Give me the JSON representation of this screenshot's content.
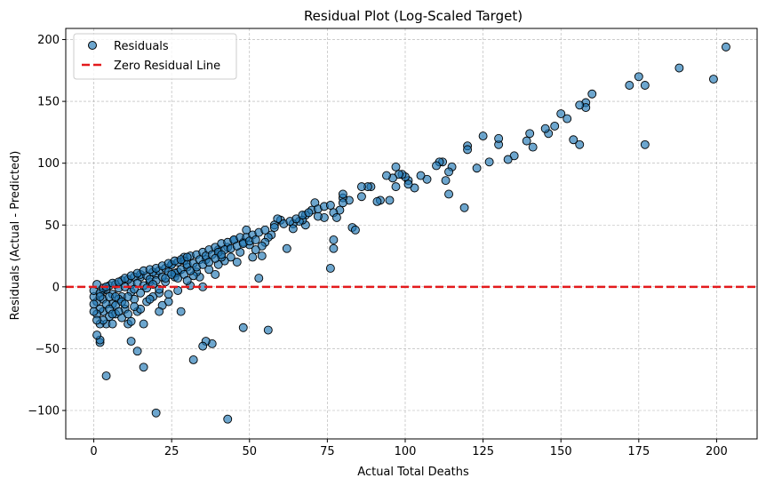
{
  "chart_data": {
    "type": "scatter",
    "title": "Residual Plot (Log-Scaled Target)",
    "xlabel": "Actual Total Deaths",
    "ylabel": "Residuals (Actual - Predicted)",
    "xlim": [
      -9,
      213
    ],
    "ylim": [
      -123,
      209
    ],
    "xticks": [
      0,
      25,
      50,
      75,
      100,
      125,
      150,
      175,
      200
    ],
    "yticks": [
      -100,
      -50,
      0,
      50,
      100,
      150,
      200
    ],
    "yticklabels": [
      "−100",
      "−50",
      "0",
      "50",
      "100",
      "150",
      "200"
    ],
    "grid": true,
    "legend_position": "top-left",
    "legend": [
      "Residuals",
      "Zero Residual Line"
    ],
    "colors": {
      "points": "#1f77b4",
      "point_edge": "#000000",
      "zero_line": "#e31a1c"
    },
    "series": [
      {
        "name": "Residuals",
        "points": [
          [
            203,
            194
          ],
          [
            188,
            177
          ],
          [
            175,
            170
          ],
          [
            172,
            163
          ],
          [
            177,
            163
          ],
          [
            199,
            168
          ],
          [
            160,
            156
          ],
          [
            158,
            149
          ],
          [
            158,
            145
          ],
          [
            156,
            147
          ],
          [
            150,
            140
          ],
          [
            152,
            136
          ],
          [
            148,
            130
          ],
          [
            146,
            124
          ],
          [
            145,
            128
          ],
          [
            154,
            119
          ],
          [
            156,
            115
          ],
          [
            177,
            115
          ],
          [
            140,
            124
          ],
          [
            141,
            113
          ],
          [
            139,
            118
          ],
          [
            135,
            106
          ],
          [
            133,
            103
          ],
          [
            130,
            115
          ],
          [
            130,
            120
          ],
          [
            125,
            122
          ],
          [
            127,
            101
          ],
          [
            123,
            96
          ],
          [
            120,
            114
          ],
          [
            120,
            111
          ],
          [
            119,
            64
          ],
          [
            115,
            97
          ],
          [
            114,
            93
          ],
          [
            114,
            75
          ],
          [
            113,
            86
          ],
          [
            112,
            101
          ],
          [
            111,
            101
          ],
          [
            110,
            98
          ],
          [
            107,
            87
          ],
          [
            105,
            90
          ],
          [
            103,
            80
          ],
          [
            101,
            86
          ],
          [
            101,
            83
          ],
          [
            100,
            89
          ],
          [
            99,
            91
          ],
          [
            98,
            91
          ],
          [
            96,
            88
          ],
          [
            97,
            81
          ],
          [
            97,
            97
          ],
          [
            95,
            70
          ],
          [
            94,
            90
          ],
          [
            92,
            70
          ],
          [
            91,
            69
          ],
          [
            89,
            81
          ],
          [
            88,
            81
          ],
          [
            86,
            81
          ],
          [
            86,
            73
          ],
          [
            82,
            70
          ],
          [
            83,
            48
          ],
          [
            84,
            46
          ],
          [
            80,
            72
          ],
          [
            80,
            75
          ],
          [
            80,
            68
          ],
          [
            79,
            62
          ],
          [
            77,
            60
          ],
          [
            77,
            38
          ],
          [
            77,
            31
          ],
          [
            76,
            15
          ],
          [
            78,
            56
          ],
          [
            74,
            56
          ],
          [
            72,
            57
          ],
          [
            71,
            68
          ],
          [
            70,
            62
          ],
          [
            68,
            58
          ],
          [
            68,
            50
          ],
          [
            67,
            54
          ],
          [
            66,
            53
          ],
          [
            64,
            51
          ],
          [
            64,
            47
          ],
          [
            62,
            31
          ],
          [
            60,
            54
          ],
          [
            59,
            55
          ],
          [
            58,
            50
          ],
          [
            57,
            42
          ],
          [
            56,
            40
          ],
          [
            56,
            -35
          ],
          [
            55,
            36
          ],
          [
            54,
            33
          ],
          [
            54,
            25
          ],
          [
            53,
            7
          ],
          [
            52,
            30
          ],
          [
            51,
            24
          ],
          [
            50,
            34
          ],
          [
            49,
            46
          ],
          [
            48,
            36
          ],
          [
            48,
            -33
          ],
          [
            47,
            28
          ],
          [
            46,
            20
          ],
          [
            45,
            38
          ],
          [
            44,
            24
          ],
          [
            43,
            -107
          ],
          [
            43,
            32
          ],
          [
            42,
            21
          ],
          [
            41,
            24
          ],
          [
            40,
            30
          ],
          [
            40,
            18
          ],
          [
            39,
            10
          ],
          [
            38,
            -46
          ],
          [
            37,
            14
          ],
          [
            36,
            22
          ],
          [
            36,
            -44
          ],
          [
            35,
            -48
          ],
          [
            35,
            0
          ],
          [
            34,
            8
          ],
          [
            33,
            12
          ],
          [
            32,
            -59
          ],
          [
            32,
            9
          ],
          [
            31,
            1
          ],
          [
            30,
            16
          ],
          [
            29,
            24
          ],
          [
            28,
            -20
          ],
          [
            27,
            12
          ],
          [
            26,
            8
          ],
          [
            25,
            18
          ],
          [
            24,
            -12
          ],
          [
            23,
            4
          ],
          [
            22,
            -15
          ],
          [
            21,
            -5
          ],
          [
            20,
            -102
          ],
          [
            20,
            10
          ],
          [
            19,
            -8
          ],
          [
            18,
            4
          ],
          [
            17,
            -12
          ],
          [
            16,
            -65
          ],
          [
            16,
            -30
          ],
          [
            15,
            8
          ],
          [
            14,
            -52
          ],
          [
            14,
            -20
          ],
          [
            13,
            -10
          ],
          [
            12,
            -44
          ],
          [
            12,
            2
          ],
          [
            11,
            -30
          ],
          [
            10,
            -18
          ],
          [
            9,
            -8
          ],
          [
            8,
            -10
          ],
          [
            7,
            -22
          ],
          [
            6,
            -14
          ],
          [
            5,
            -24
          ],
          [
            4,
            -72
          ],
          [
            4,
            -30
          ],
          [
            3,
            -20
          ],
          [
            2,
            -45
          ],
          [
            2,
            -43
          ],
          [
            2,
            -30
          ],
          [
            1,
            -39
          ],
          [
            1,
            -12
          ],
          [
            0,
            -8
          ],
          [
            0,
            -3
          ],
          [
            1,
            2
          ],
          [
            3,
            -3
          ],
          [
            5,
            1
          ],
          [
            7,
            2
          ],
          [
            9,
            5
          ],
          [
            11,
            6
          ],
          [
            13,
            8
          ],
          [
            15,
            10
          ],
          [
            17,
            9
          ],
          [
            19,
            12
          ],
          [
            21,
            13
          ],
          [
            23,
            15
          ],
          [
            25,
            18
          ],
          [
            27,
            20
          ],
          [
            29,
            21
          ],
          [
            31,
            25
          ],
          [
            33,
            26
          ],
          [
            35,
            28
          ],
          [
            37,
            30
          ],
          [
            39,
            32
          ],
          [
            41,
            35
          ],
          [
            43,
            36
          ],
          [
            45,
            38
          ],
          [
            47,
            40
          ],
          [
            49,
            40
          ],
          [
            51,
            42
          ],
          [
            53,
            44
          ],
          [
            55,
            46
          ],
          [
            58,
            48
          ],
          [
            61,
            51
          ],
          [
            63,
            53
          ],
          [
            65,
            55
          ],
          [
            67,
            58
          ],
          [
            69,
            60
          ],
          [
            72,
            63
          ],
          [
            74,
            65
          ],
          [
            76,
            66
          ],
          [
            2,
            -5
          ],
          [
            4,
            -2
          ],
          [
            6,
            -6
          ],
          [
            8,
            -1
          ],
          [
            10,
            0
          ],
          [
            12,
            -4
          ],
          [
            14,
            3
          ],
          [
            16,
            1
          ],
          [
            18,
            6
          ],
          [
            20,
            5
          ],
          [
            22,
            8
          ],
          [
            24,
            12
          ],
          [
            26,
            11
          ],
          [
            28,
            14
          ],
          [
            30,
            18
          ],
          [
            32,
            19
          ],
          [
            34,
            22
          ],
          [
            36,
            25
          ],
          [
            38,
            26
          ],
          [
            40,
            28
          ],
          [
            42,
            30
          ],
          [
            44,
            31
          ],
          [
            46,
            33
          ],
          [
            48,
            35
          ],
          [
            50,
            37
          ],
          [
            52,
            38
          ],
          [
            3,
            -10
          ],
          [
            5,
            -8
          ],
          [
            7,
            -15
          ],
          [
            9,
            -12
          ],
          [
            11,
            -8
          ],
          [
            13,
            -2
          ],
          [
            15,
            -5
          ],
          [
            17,
            -1
          ],
          [
            19,
            2
          ],
          [
            21,
            -2
          ],
          [
            23,
            7
          ],
          [
            25,
            10
          ],
          [
            27,
            7
          ],
          [
            29,
            10
          ],
          [
            31,
            13
          ],
          [
            33,
            16
          ],
          [
            35,
            18
          ],
          [
            37,
            20
          ],
          [
            39,
            23
          ],
          [
            41,
            26
          ],
          [
            6,
            -30
          ],
          [
            9,
            -25
          ],
          [
            12,
            -28
          ],
          [
            15,
            -18
          ],
          [
            18,
            -10
          ],
          [
            21,
            -20
          ],
          [
            24,
            -6
          ],
          [
            27,
            -3
          ],
          [
            30,
            5
          ],
          [
            2,
            -18
          ],
          [
            3,
            -27
          ],
          [
            4,
            -14
          ],
          [
            5,
            -18
          ],
          [
            6,
            -22
          ],
          [
            7,
            -8
          ],
          [
            8,
            -20
          ],
          [
            10,
            -14
          ],
          [
            11,
            -22
          ],
          [
            13,
            -16
          ],
          [
            1,
            -22
          ],
          [
            1,
            -27
          ],
          [
            0,
            -14
          ],
          [
            0,
            -20
          ],
          [
            2,
            -8
          ],
          [
            3,
            -1
          ],
          [
            4,
            0
          ],
          [
            6,
            3
          ],
          [
            8,
            4
          ],
          [
            10,
            7
          ],
          [
            12,
            9
          ],
          [
            14,
            11
          ],
          [
            16,
            13
          ],
          [
            18,
            14
          ],
          [
            20,
            15
          ],
          [
            22,
            17
          ],
          [
            24,
            19
          ],
          [
            26,
            21
          ],
          [
            28,
            22
          ],
          [
            30,
            24
          ]
        ]
      }
    ]
  }
}
